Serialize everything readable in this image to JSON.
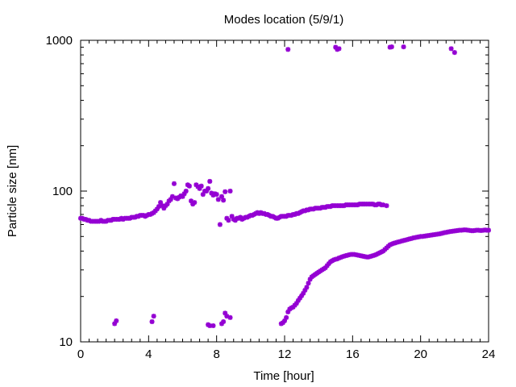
{
  "chart_data": {
    "type": "scatter",
    "title": "Modes location (5/9/1)",
    "xlabel": "Time [hour]",
    "ylabel": "Particle size [nm]",
    "xlim": [
      0,
      24
    ],
    "ylim": [
      10,
      1000
    ],
    "yscale": "log",
    "grid": false,
    "legend": "none",
    "x_ticks": [
      0,
      4,
      8,
      12,
      16,
      20,
      24
    ],
    "x_tick_labels": [
      "0",
      "4",
      "8",
      "12",
      "16",
      "20",
      "24"
    ],
    "y_ticks": [
      10,
      100,
      1000
    ],
    "y_tick_labels": [
      "10",
      "100",
      "1000"
    ],
    "marker_color": "#9400d3",
    "series": [
      {
        "points": [
          [
            0.0,
            66
          ],
          [
            0.1,
            66
          ],
          [
            0.2,
            65
          ],
          [
            0.3,
            65
          ],
          [
            0.4,
            64
          ],
          [
            0.5,
            64
          ],
          [
            0.6,
            63
          ],
          [
            0.7,
            63
          ],
          [
            0.8,
            63
          ],
          [
            0.9,
            63
          ],
          [
            1.0,
            63
          ],
          [
            1.1,
            63
          ],
          [
            1.2,
            64
          ],
          [
            1.3,
            63
          ],
          [
            1.4,
            63
          ],
          [
            1.5,
            63
          ],
          [
            1.6,
            64
          ],
          [
            1.7,
            64
          ],
          [
            1.8,
            64
          ],
          [
            1.9,
            65
          ],
          [
            2.0,
            65
          ],
          [
            2.1,
            65
          ],
          [
            2.2,
            65
          ],
          [
            2.3,
            65
          ],
          [
            2.4,
            66
          ],
          [
            2.5,
            65
          ],
          [
            2.6,
            66
          ],
          [
            2.7,
            66
          ],
          [
            2.8,
            66
          ],
          [
            2.9,
            66
          ],
          [
            3.0,
            67
          ],
          [
            3.1,
            67
          ],
          [
            3.2,
            67
          ],
          [
            3.3,
            68
          ],
          [
            3.4,
            68
          ],
          [
            3.5,
            69
          ],
          [
            3.6,
            69
          ],
          [
            3.7,
            69
          ],
          [
            3.8,
            68
          ],
          [
            3.9,
            69
          ],
          [
            4.0,
            70
          ],
          [
            4.1,
            70
          ],
          [
            4.2,
            71
          ],
          [
            4.3,
            72
          ],
          [
            4.4,
            74
          ],
          [
            4.5,
            76
          ],
          [
            4.6,
            79
          ],
          [
            4.7,
            84
          ],
          [
            4.8,
            80
          ],
          [
            4.9,
            77
          ],
          [
            5.0,
            80
          ],
          [
            5.1,
            82
          ],
          [
            5.2,
            86
          ],
          [
            5.3,
            88
          ],
          [
            5.4,
            92
          ],
          [
            5.5,
            112
          ],
          [
            5.6,
            90
          ],
          [
            5.7,
            89
          ],
          [
            5.8,
            91
          ],
          [
            5.9,
            93
          ],
          [
            6.0,
            92
          ],
          [
            6.1,
            96
          ],
          [
            6.2,
            100
          ],
          [
            6.3,
            110
          ],
          [
            6.4,
            108
          ],
          [
            6.5,
            86
          ],
          [
            6.6,
            82
          ],
          [
            6.7,
            84
          ],
          [
            6.8,
            110
          ],
          [
            6.9,
            107
          ],
          [
            7.0,
            104
          ],
          [
            7.1,
            108
          ],
          [
            7.2,
            95
          ],
          [
            7.3,
            100
          ],
          [
            7.4,
            100
          ],
          [
            7.5,
            104
          ],
          [
            7.6,
            116
          ],
          [
            7.7,
            97
          ],
          [
            7.8,
            94
          ],
          [
            7.9,
            96
          ],
          [
            8.0,
            95
          ],
          [
            8.1,
            88
          ],
          [
            8.2,
            60
          ],
          [
            8.3,
            92
          ],
          [
            8.4,
            87
          ],
          [
            8.5,
            99
          ],
          [
            8.6,
            66
          ],
          [
            8.7,
            64
          ],
          [
            8.8,
            100
          ],
          [
            8.9,
            68
          ],
          [
            9.0,
            65
          ],
          [
            9.1,
            64
          ],
          [
            9.2,
            66
          ],
          [
            9.3,
            66
          ],
          [
            9.4,
            67
          ],
          [
            9.5,
            65
          ],
          [
            9.6,
            66
          ],
          [
            9.7,
            67
          ],
          [
            9.8,
            67
          ],
          [
            9.9,
            68
          ],
          [
            10.0,
            69
          ],
          [
            10.1,
            69
          ],
          [
            10.2,
            70
          ],
          [
            10.3,
            71
          ],
          [
            10.4,
            72
          ],
          [
            10.5,
            71
          ],
          [
            10.6,
            72
          ],
          [
            10.7,
            71
          ],
          [
            10.8,
            71
          ],
          [
            10.9,
            70
          ],
          [
            11.0,
            70
          ],
          [
            11.1,
            69
          ],
          [
            11.2,
            68
          ],
          [
            11.3,
            68
          ],
          [
            11.4,
            67
          ],
          [
            11.5,
            66
          ],
          [
            11.6,
            66
          ],
          [
            11.7,
            67
          ],
          [
            11.8,
            68
          ],
          [
            11.9,
            68
          ],
          [
            12.0,
            68
          ],
          [
            12.1,
            68
          ],
          [
            12.2,
            69
          ],
          [
            12.3,
            69
          ],
          [
            12.4,
            69
          ],
          [
            12.5,
            70
          ],
          [
            12.6,
            70
          ],
          [
            12.7,
            71
          ],
          [
            12.8,
            71
          ],
          [
            12.9,
            72
          ],
          [
            13.0,
            73
          ],
          [
            13.1,
            74
          ],
          [
            13.2,
            74
          ],
          [
            13.3,
            75
          ],
          [
            13.4,
            75
          ],
          [
            13.5,
            76
          ],
          [
            13.6,
            76
          ],
          [
            13.7,
            76
          ],
          [
            13.8,
            77
          ],
          [
            13.9,
            77
          ],
          [
            14.0,
            77
          ],
          [
            14.1,
            77
          ],
          [
            14.2,
            78
          ],
          [
            14.3,
            78
          ],
          [
            14.4,
            78
          ],
          [
            14.5,
            79
          ],
          [
            14.6,
            79
          ],
          [
            14.7,
            79
          ],
          [
            14.8,
            80
          ],
          [
            14.9,
            80
          ],
          [
            15.0,
            80
          ],
          [
            15.1,
            80
          ],
          [
            15.2,
            80
          ],
          [
            15.3,
            80
          ],
          [
            15.4,
            80
          ],
          [
            15.5,
            80
          ],
          [
            15.6,
            81
          ],
          [
            15.7,
            81
          ],
          [
            15.8,
            81
          ],
          [
            15.9,
            81
          ],
          [
            16.0,
            81
          ],
          [
            16.1,
            81
          ],
          [
            16.2,
            81
          ],
          [
            16.3,
            81
          ],
          [
            16.4,
            82
          ],
          [
            16.5,
            82
          ],
          [
            16.6,
            82
          ],
          [
            16.7,
            82
          ],
          [
            16.8,
            82
          ],
          [
            16.9,
            82
          ],
          [
            17.0,
            82
          ],
          [
            17.1,
            82
          ],
          [
            17.2,
            82
          ],
          [
            17.3,
            81
          ],
          [
            17.4,
            81
          ],
          [
            17.5,
            82
          ],
          [
            17.6,
            82
          ],
          [
            17.7,
            81
          ],
          [
            17.8,
            81
          ],
          [
            18.0,
            80
          ],
          [
            11.8,
            13.2
          ],
          [
            11.9,
            13.4
          ],
          [
            12.0,
            13.8
          ],
          [
            12.1,
            14.5
          ],
          [
            12.2,
            15.8
          ],
          [
            12.3,
            16.5
          ],
          [
            12.4,
            16.8
          ],
          [
            12.5,
            17
          ],
          [
            12.6,
            17.5
          ],
          [
            12.7,
            18
          ],
          [
            12.8,
            18.8
          ],
          [
            12.9,
            19.5
          ],
          [
            13.0,
            20.2
          ],
          [
            13.1,
            21
          ],
          [
            13.2,
            22
          ],
          [
            13.3,
            23
          ],
          [
            13.4,
            24.5
          ],
          [
            13.5,
            26
          ],
          [
            13.6,
            27
          ],
          [
            13.7,
            27.5
          ],
          [
            13.8,
            28
          ],
          [
            13.9,
            28.5
          ],
          [
            14.0,
            29
          ],
          [
            14.1,
            29.5
          ],
          [
            14.2,
            30
          ],
          [
            14.3,
            30.5
          ],
          [
            14.4,
            31
          ],
          [
            14.5,
            32
          ],
          [
            14.6,
            33
          ],
          [
            14.7,
            34
          ],
          [
            14.8,
            34.5
          ],
          [
            14.9,
            35
          ],
          [
            15.0,
            35.3
          ],
          [
            15.1,
            35.5
          ],
          [
            15.2,
            36
          ],
          [
            15.3,
            36.3
          ],
          [
            15.4,
            36.7
          ],
          [
            15.5,
            37
          ],
          [
            15.6,
            37.3
          ],
          [
            15.7,
            37.5
          ],
          [
            15.8,
            37.8
          ],
          [
            15.9,
            38
          ],
          [
            16.0,
            38
          ],
          [
            16.1,
            38
          ],
          [
            16.2,
            37.8
          ],
          [
            16.3,
            37.6
          ],
          [
            16.4,
            37.4
          ],
          [
            16.5,
            37.2
          ],
          [
            16.6,
            37
          ],
          [
            16.7,
            36.8
          ],
          [
            16.8,
            36.6
          ],
          [
            16.9,
            36.5
          ],
          [
            17.0,
            36.7
          ],
          [
            17.1,
            37
          ],
          [
            17.2,
            37.3
          ],
          [
            17.3,
            37.6
          ],
          [
            17.4,
            38
          ],
          [
            17.5,
            38.5
          ],
          [
            17.6,
            39
          ],
          [
            17.7,
            39.5
          ],
          [
            17.8,
            40
          ],
          [
            17.9,
            41
          ],
          [
            18.0,
            42
          ],
          [
            18.1,
            43
          ],
          [
            18.2,
            44
          ],
          [
            18.3,
            44.5
          ],
          [
            18.4,
            45
          ],
          [
            18.5,
            45.3
          ],
          [
            18.6,
            45.7
          ],
          [
            18.7,
            46
          ],
          [
            18.8,
            46.3
          ],
          [
            18.9,
            46.7
          ],
          [
            19.0,
            47
          ],
          [
            19.1,
            47.3
          ],
          [
            19.2,
            47.6
          ],
          [
            19.3,
            48
          ],
          [
            19.4,
            48.3
          ],
          [
            19.5,
            48.6
          ],
          [
            19.6,
            49
          ],
          [
            19.7,
            49.2
          ],
          [
            19.8,
            49.5
          ],
          [
            19.9,
            49.7
          ],
          [
            20.0,
            50
          ],
          [
            20.1,
            50
          ],
          [
            20.2,
            50.2
          ],
          [
            20.3,
            50.4
          ],
          [
            20.4,
            50.6
          ],
          [
            20.5,
            50.8
          ],
          [
            20.6,
            51
          ],
          [
            20.7,
            51.2
          ],
          [
            20.8,
            51.4
          ],
          [
            20.9,
            51.6
          ],
          [
            21.0,
            51.8
          ],
          [
            21.1,
            52
          ],
          [
            21.2,
            52.3
          ],
          [
            21.3,
            52.6
          ],
          [
            21.4,
            53
          ],
          [
            21.5,
            53.2
          ],
          [
            21.6,
            53.5
          ],
          [
            21.7,
            53.8
          ],
          [
            21.8,
            54
          ],
          [
            21.9,
            54.2
          ],
          [
            22.0,
            54.4
          ],
          [
            22.1,
            54.6
          ],
          [
            22.2,
            54.8
          ],
          [
            22.3,
            55
          ],
          [
            22.4,
            55
          ],
          [
            22.5,
            55.2
          ],
          [
            22.6,
            55.3
          ],
          [
            22.7,
            55.2
          ],
          [
            22.8,
            55
          ],
          [
            22.9,
            54.8
          ],
          [
            23.0,
            54.6
          ],
          [
            23.1,
            54.6
          ],
          [
            23.2,
            54.8
          ],
          [
            23.3,
            55
          ],
          [
            23.4,
            55
          ],
          [
            23.5,
            54.8
          ],
          [
            23.6,
            54.8
          ],
          [
            23.7,
            55
          ],
          [
            23.8,
            55.2
          ],
          [
            23.9,
            55
          ],
          [
            24.0,
            55
          ],
          [
            2.0,
            13.2
          ],
          [
            2.1,
            13.8
          ],
          [
            4.2,
            13.6
          ],
          [
            4.3,
            14.8
          ],
          [
            7.5,
            13
          ],
          [
            7.6,
            12.8
          ],
          [
            7.8,
            12.8
          ],
          [
            8.3,
            13.2
          ],
          [
            8.4,
            13.6
          ],
          [
            8.6,
            14.8
          ],
          [
            8.8,
            14.5
          ],
          [
            8.5,
            15.5
          ],
          [
            12.2,
            870
          ],
          [
            15.0,
            900
          ],
          [
            15.1,
            870
          ],
          [
            15.2,
            880
          ],
          [
            18.2,
            900
          ],
          [
            18.3,
            905
          ],
          [
            19.0,
            905
          ],
          [
            21.8,
            880
          ],
          [
            22.0,
            830
          ]
        ]
      }
    ]
  }
}
